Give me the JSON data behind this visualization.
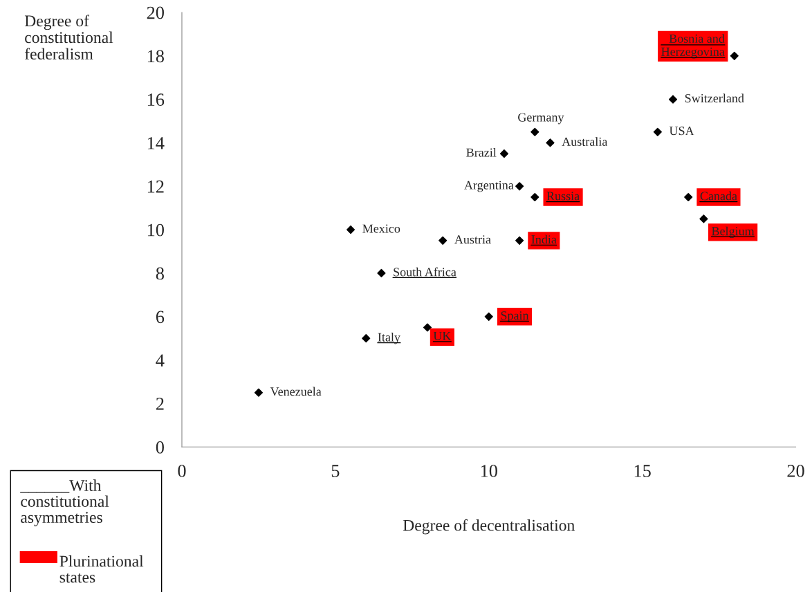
{
  "chart_data": {
    "type": "scatter",
    "xlabel": "Degree of decentralisation",
    "ylabel": "Degree of\nconstitutional\nfederalism",
    "xlim": [
      0,
      20
    ],
    "xticks": [
      0,
      5,
      10,
      15,
      20
    ],
    "ylim": [
      0,
      20
    ],
    "yticks": [
      0,
      2,
      4,
      6,
      8,
      10,
      12,
      14,
      16,
      18,
      20
    ],
    "grid": false,
    "marker": "diamond",
    "series": [
      {
        "color": "#000000",
        "x": [
          2.5,
          5.5,
          6.5,
          6,
          8,
          8.5,
          10,
          10.5,
          11,
          11,
          11.5,
          11.5,
          12,
          15.5,
          16,
          16.5,
          17,
          18
        ],
        "values": [
          2.5,
          10,
          8,
          5,
          5.5,
          9.5,
          6,
          13.5,
          12,
          9.5,
          14.5,
          11.5,
          14,
          14.5,
          16,
          11.5,
          10.5,
          18
        ]
      }
    ],
    "annotations": [
      {
        "text": "Venezuela",
        "x": 2.5,
        "y": 2.5
      },
      {
        "text": "Mexico",
        "x": 5.5,
        "y": 10
      },
      {
        "text": "South Africa",
        "x": 6.5,
        "y": 8
      },
      {
        "text": "Italy",
        "x": 6,
        "y": 5
      },
      {
        "text": "UK",
        "x": 8,
        "y": 5.5
      },
      {
        "text": "Austria",
        "x": 8.5,
        "y": 9.5
      },
      {
        "text": "Spain",
        "x": 10,
        "y": 6
      },
      {
        "text": "Brazil",
        "x": 10.5,
        "y": 13.5
      },
      {
        "text": "Argentina",
        "x": 11,
        "y": 12
      },
      {
        "text": "India",
        "x": 11,
        "y": 9.5
      },
      {
        "text": "Germany",
        "x": 11.5,
        "y": 14.5
      },
      {
        "text": "Russia",
        "x": 11.5,
        "y": 11.5
      },
      {
        "text": "Australia",
        "x": 12,
        "y": 14
      },
      {
        "text": "USA",
        "x": 15.5,
        "y": 14.5
      },
      {
        "text": "Switzerland",
        "x": 16,
        "y": 16
      },
      {
        "text": "Canada",
        "x": 16.5,
        "y": 11.5
      },
      {
        "text": "Belgium",
        "x": 17,
        "y": 10.5
      },
      {
        "text": "Bosnia and\nHerzegovina",
        "x": 18,
        "y": 18
      },
      "______With\nconstitutional\nasymmetries",
      "Plurinational\nstates"
    ]
  }
}
